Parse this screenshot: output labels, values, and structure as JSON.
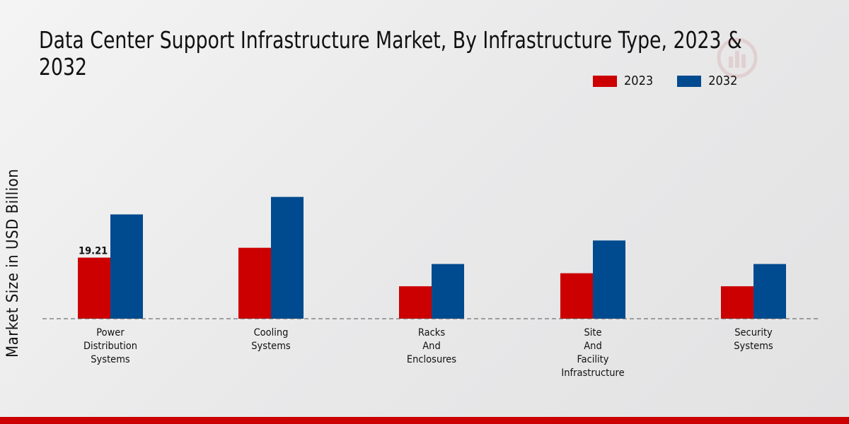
{
  "chart_data": {
    "type": "bar",
    "title": "Data Center Support Infrastructure Market, By Infrastructure Type, 2023 & 2032",
    "ylabel": "Market Size in USD Billion",
    "xlabel": "",
    "ylim": [
      0,
      45
    ],
    "grid": false,
    "legend_position": "top-right",
    "categories": [
      [
        "Power",
        "Distribution",
        "Systems"
      ],
      [
        "Cooling",
        "Systems"
      ],
      [
        "Racks",
        "And",
        "Enclosures"
      ],
      [
        "Site",
        "And",
        "Facility",
        "Infrastructure"
      ],
      [
        "Security",
        "Systems"
      ]
    ],
    "series": [
      {
        "name": "2023",
        "color": "#cc0000",
        "values": [
          19.21,
          22.3,
          10.2,
          14.3,
          10.2
        ]
      },
      {
        "name": "2032",
        "color": "#004a8f",
        "values": [
          32.8,
          38.3,
          17.2,
          24.6,
          17.2
        ]
      }
    ],
    "annotations": [
      {
        "series": 0,
        "category": 0,
        "text": "19.21"
      }
    ]
  }
}
